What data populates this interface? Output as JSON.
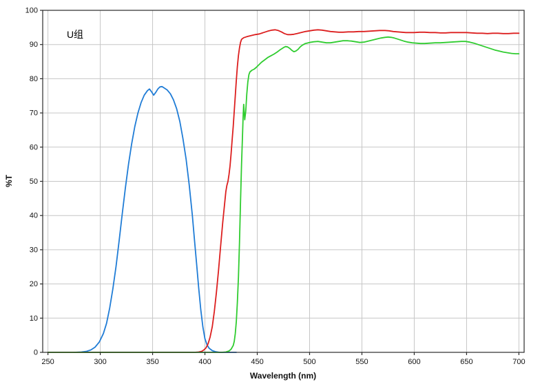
{
  "chart_data": {
    "type": "line",
    "title": "",
    "xlabel": "Wavelength (nm)",
    "ylabel": "%T",
    "xlim": [
      250,
      700
    ],
    "ylim": [
      0,
      100
    ],
    "x_ticks": [
      250,
      300,
      350,
      400,
      450,
      500,
      550,
      600,
      650,
      700
    ],
    "y_ticks": [
      0,
      10,
      20,
      30,
      40,
      50,
      60,
      70,
      80,
      90,
      100
    ],
    "grid": true,
    "legend": "none",
    "colors": {
      "grid": "#c6c6c6",
      "axis": "#2a2a2a",
      "text": "#111111",
      "background": "#ffffff"
    },
    "annotations": [
      {
        "text": "U组",
        "x": 268,
        "y": 93
      }
    ],
    "series": [
      {
        "name": "blue-bandpass-filter",
        "color": "#1f7cd6",
        "points": [
          [
            275,
            0
          ],
          [
            282,
            0.1
          ],
          [
            287,
            0.3
          ],
          [
            291,
            0.7
          ],
          [
            295,
            1.5
          ],
          [
            299,
            3
          ],
          [
            303,
            5.5
          ],
          [
            306,
            8.5
          ],
          [
            309,
            13
          ],
          [
            312,
            18.5
          ],
          [
            315,
            25
          ],
          [
            318,
            32.5
          ],
          [
            321,
            40.5
          ],
          [
            324,
            48
          ],
          [
            327,
            55
          ],
          [
            330,
            61
          ],
          [
            333,
            66
          ],
          [
            336,
            70
          ],
          [
            339,
            73
          ],
          [
            342,
            75.2
          ],
          [
            345,
            76.5
          ],
          [
            347,
            77
          ],
          [
            349,
            76.2
          ],
          [
            351,
            75.2
          ],
          [
            353,
            76
          ],
          [
            355,
            77
          ],
          [
            357,
            77.6
          ],
          [
            359,
            77.7
          ],
          [
            361,
            77.3
          ],
          [
            364,
            76.7
          ],
          [
            367,
            75.6
          ],
          [
            370,
            73.8
          ],
          [
            373,
            71.2
          ],
          [
            376,
            67.5
          ],
          [
            379,
            62.5
          ],
          [
            382,
            56.5
          ],
          [
            385,
            49
          ],
          [
            388,
            40
          ],
          [
            390,
            33
          ],
          [
            392,
            26
          ],
          [
            394,
            19
          ],
          [
            396,
            12.5
          ],
          [
            398,
            7.5
          ],
          [
            400,
            4
          ],
          [
            402,
            2.2
          ],
          [
            404,
            1.2
          ],
          [
            407,
            0.5
          ],
          [
            410,
            0.2
          ],
          [
            414,
            0
          ],
          [
            420,
            0
          ],
          [
            430,
            0
          ]
        ]
      },
      {
        "name": "red-longpass-filter",
        "color": "#dc1e1e",
        "points": [
          [
            250,
            0
          ],
          [
            300,
            0
          ],
          [
            350,
            0
          ],
          [
            380,
            0
          ],
          [
            390,
            0
          ],
          [
            394,
            0.1
          ],
          [
            397,
            0.3
          ],
          [
            399,
            0.7
          ],
          [
            401,
            1.3
          ],
          [
            403,
            2.5
          ],
          [
            405,
            4.5
          ],
          [
            407,
            7.5
          ],
          [
            409,
            12
          ],
          [
            411,
            17.5
          ],
          [
            413,
            24
          ],
          [
            415,
            31
          ],
          [
            417,
            38
          ],
          [
            419,
            44
          ],
          [
            420,
            47
          ],
          [
            421,
            48.8
          ],
          [
            422,
            50
          ],
          [
            423,
            52
          ],
          [
            424,
            54.5
          ],
          [
            425,
            58
          ],
          [
            426,
            62
          ],
          [
            427,
            66
          ],
          [
            428,
            70.5
          ],
          [
            429,
            75
          ],
          [
            430,
            79.5
          ],
          [
            431,
            83.5
          ],
          [
            432,
            86.8
          ],
          [
            433,
            89
          ],
          [
            434,
            90.6
          ],
          [
            435,
            91.5
          ],
          [
            437,
            92
          ],
          [
            440,
            92.3
          ],
          [
            444,
            92.6
          ],
          [
            448,
            92.9
          ],
          [
            452,
            93.1
          ],
          [
            456,
            93.5
          ],
          [
            460,
            93.9
          ],
          [
            464,
            94.2
          ],
          [
            467,
            94.3
          ],
          [
            470,
            94.1
          ],
          [
            473,
            93.7
          ],
          [
            476,
            93.2
          ],
          [
            479,
            92.9
          ],
          [
            482,
            92.9
          ],
          [
            485,
            93
          ],
          [
            488,
            93.2
          ],
          [
            492,
            93.5
          ],
          [
            496,
            93.8
          ],
          [
            500,
            94
          ],
          [
            504,
            94.2
          ],
          [
            508,
            94.3
          ],
          [
            512,
            94.2
          ],
          [
            516,
            94
          ],
          [
            520,
            93.8
          ],
          [
            524,
            93.7
          ],
          [
            528,
            93.6
          ],
          [
            532,
            93.6
          ],
          [
            537,
            93.7
          ],
          [
            542,
            93.7
          ],
          [
            547,
            93.8
          ],
          [
            552,
            93.8
          ],
          [
            557,
            93.9
          ],
          [
            562,
            94
          ],
          [
            567,
            94.1
          ],
          [
            572,
            94.1
          ],
          [
            576,
            94
          ],
          [
            580,
            93.8
          ],
          [
            584,
            93.7
          ],
          [
            588,
            93.6
          ],
          [
            592,
            93.5
          ],
          [
            596,
            93.5
          ],
          [
            600,
            93.5
          ],
          [
            605,
            93.6
          ],
          [
            610,
            93.6
          ],
          [
            615,
            93.5
          ],
          [
            620,
            93.5
          ],
          [
            625,
            93.4
          ],
          [
            630,
            93.4
          ],
          [
            635,
            93.5
          ],
          [
            640,
            93.5
          ],
          [
            645,
            93.5
          ],
          [
            650,
            93.5
          ],
          [
            655,
            93.4
          ],
          [
            660,
            93.3
          ],
          [
            665,
            93.3
          ],
          [
            670,
            93.2
          ],
          [
            675,
            93.3
          ],
          [
            680,
            93.3
          ],
          [
            685,
            93.2
          ],
          [
            690,
            93.2
          ],
          [
            695,
            93.3
          ],
          [
            700,
            93.3
          ]
        ]
      },
      {
        "name": "green-longpass-filter",
        "color": "#2fcc2f",
        "points": [
          [
            250,
            0
          ],
          [
            320,
            0
          ],
          [
            380,
            0
          ],
          [
            410,
            0
          ],
          [
            416,
            0
          ],
          [
            420,
            0.1
          ],
          [
            423,
            0.4
          ],
          [
            425,
            0.9
          ],
          [
            427,
            2
          ],
          [
            428,
            3.2
          ],
          [
            429,
            5.5
          ],
          [
            430,
            9
          ],
          [
            431,
            14.5
          ],
          [
            432,
            22
          ],
          [
            433,
            32
          ],
          [
            434,
            44
          ],
          [
            435,
            55
          ],
          [
            436,
            64
          ],
          [
            436.5,
            69
          ],
          [
            437,
            72.5
          ],
          [
            437.5,
            70.5
          ],
          [
            438,
            68
          ],
          [
            439,
            70.5
          ],
          [
            440,
            75.5
          ],
          [
            441,
            79
          ],
          [
            442,
            81.2
          ],
          [
            443,
            82
          ],
          [
            445,
            82.5
          ],
          [
            447,
            82.8
          ],
          [
            449,
            83.3
          ],
          [
            451,
            83.9
          ],
          [
            454,
            84.8
          ],
          [
            457,
            85.5
          ],
          [
            460,
            86.2
          ],
          [
            463,
            86.7
          ],
          [
            466,
            87.2
          ],
          [
            469,
            87.8
          ],
          [
            472,
            88.5
          ],
          [
            475,
            89.1
          ],
          [
            477,
            89.4
          ],
          [
            479,
            89.3
          ],
          [
            481,
            88.9
          ],
          [
            483,
            88.3
          ],
          [
            485,
            87.9
          ],
          [
            487,
            88.1
          ],
          [
            489,
            88.6
          ],
          [
            491,
            89.3
          ],
          [
            493,
            89.8
          ],
          [
            496,
            90.3
          ],
          [
            500,
            90.6
          ],
          [
            504,
            90.8
          ],
          [
            508,
            90.9
          ],
          [
            512,
            90.7
          ],
          [
            516,
            90.5
          ],
          [
            520,
            90.5
          ],
          [
            524,
            90.7
          ],
          [
            528,
            90.9
          ],
          [
            532,
            91.1
          ],
          [
            536,
            91.1
          ],
          [
            540,
            91
          ],
          [
            544,
            90.8
          ],
          [
            548,
            90.6
          ],
          [
            552,
            90.7
          ],
          [
            556,
            91
          ],
          [
            560,
            91.3
          ],
          [
            564,
            91.6
          ],
          [
            568,
            91.9
          ],
          [
            572,
            92.1
          ],
          [
            575,
            92.2
          ],
          [
            578,
            92.1
          ],
          [
            581,
            91.9
          ],
          [
            584,
            91.6
          ],
          [
            587,
            91.3
          ],
          [
            590,
            91
          ],
          [
            594,
            90.7
          ],
          [
            598,
            90.5
          ],
          [
            602,
            90.4
          ],
          [
            606,
            90.3
          ],
          [
            610,
            90.3
          ],
          [
            615,
            90.4
          ],
          [
            620,
            90.5
          ],
          [
            625,
            90.5
          ],
          [
            630,
            90.6
          ],
          [
            635,
            90.7
          ],
          [
            640,
            90.8
          ],
          [
            645,
            90.9
          ],
          [
            649,
            90.9
          ],
          [
            653,
            90.7
          ],
          [
            657,
            90.4
          ],
          [
            661,
            90
          ],
          [
            665,
            89.6
          ],
          [
            669,
            89.2
          ],
          [
            673,
            88.8
          ],
          [
            677,
            88.4
          ],
          [
            681,
            88.1
          ],
          [
            685,
            87.8
          ],
          [
            689,
            87.6
          ],
          [
            693,
            87.4
          ],
          [
            697,
            87.3
          ],
          [
            700,
            87.3
          ]
        ]
      }
    ]
  }
}
